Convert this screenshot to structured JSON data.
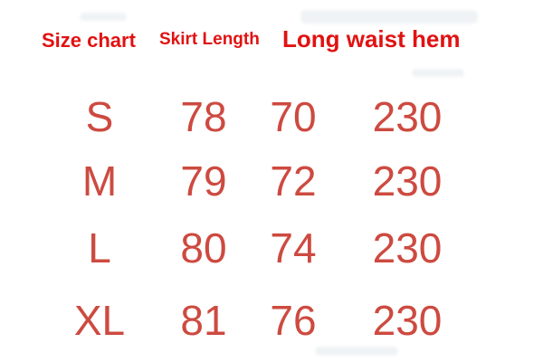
{
  "colors": {
    "background": "#ffffff",
    "header_red": "#e11212",
    "value_red": "#cd4a40"
  },
  "chart_data": {
    "type": "table",
    "title": "Size chart",
    "headers": [
      "Size chart",
      "Skirt Length",
      "Long waist hem"
    ],
    "header_note_spans": {
      "Long waist hem": [
        "waist",
        "hem"
      ]
    },
    "rows": [
      {
        "size": "S",
        "skirt_length": "78",
        "waist": "70",
        "hem": "230"
      },
      {
        "size": "M",
        "skirt_length": "79",
        "waist": "72",
        "hem": "230"
      },
      {
        "size": "L",
        "skirt_length": "80",
        "waist": "74",
        "hem": "230"
      },
      {
        "size": "XL",
        "skirt_length": "81",
        "waist": "76",
        "hem": "230"
      }
    ]
  }
}
